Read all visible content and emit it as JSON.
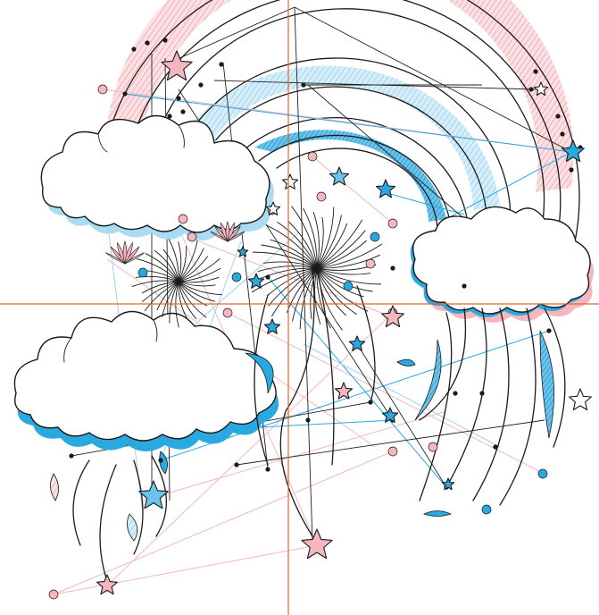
{
  "colors": {
    "rainbow_outer": "#f5b6bd",
    "rainbow_middle": "#a9dcf3",
    "rainbow_inner": "#2aa8e0",
    "cloud_shadow_blue": "#2aa8e0",
    "cloud_shadow_lightblue": "#a9dcf3",
    "cloud_shadow_pink": "#f5b6bd",
    "axis_line": "#e0662a",
    "ink": "#1a1a1a"
  },
  "illustration": {
    "elements": [
      "rainbow",
      "clouds",
      "fireworks",
      "stars",
      "streamers",
      "network-lines"
    ]
  }
}
